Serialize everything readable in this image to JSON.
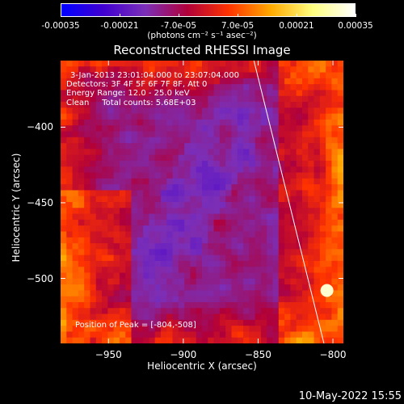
{
  "colorbar": {
    "labels": [
      "-0.00035",
      "-0.00021",
      "-7.0e-05",
      "7.0e-05",
      "0.00021",
      "0.00035"
    ],
    "values": [
      -0.00035,
      -0.00021,
      -7e-05,
      7e-05,
      0.00021,
      0.00035
    ],
    "units": "(photons cm⁻² s⁻¹ asec⁻²)",
    "colormap": [
      "#0000ff",
      "#4000d0",
      "#7b2fb8",
      "#b0003a",
      "#ff3300",
      "#ffaa00",
      "#ffff80",
      "#ffffff"
    ]
  },
  "chart_data": {
    "type": "heatmap",
    "title": "Reconstructed RHESSI Image",
    "xlabel": "Heliocentric X (arcsec)",
    "ylabel": "Heliocentric Y (arcsec)",
    "xlim": [
      -982,
      -793
    ],
    "ylim": [
      -543,
      -356
    ],
    "xticks": [
      -950,
      -900,
      -850,
      -800
    ],
    "xtick_labels": [
      "−950",
      "−900",
      "−850",
      "−800"
    ],
    "yticks": [
      -400,
      -450,
      -500
    ],
    "ytick_labels": [
      "−400",
      "−450",
      "−500"
    ],
    "limb_line": [
      [
        -852.8,
        -356
      ],
      [
        -806,
        -543
      ]
    ],
    "peak": [
      -804,
      -508
    ]
  },
  "annotations": {
    "time_range": "3-Jan-2013 23:01:04.000 to 23:07:04.000",
    "detectors": "Detectors: 3F 4F 5F 6F 7F 8F, Att 0",
    "energy": "Energy Range: 12.0 - 25.0 keV",
    "clean": "Clean     Total counts: 5.68E+03",
    "peak_position": "Position of Peak = [-804,-508]"
  },
  "timestamp": "10-May-2022 15:55"
}
